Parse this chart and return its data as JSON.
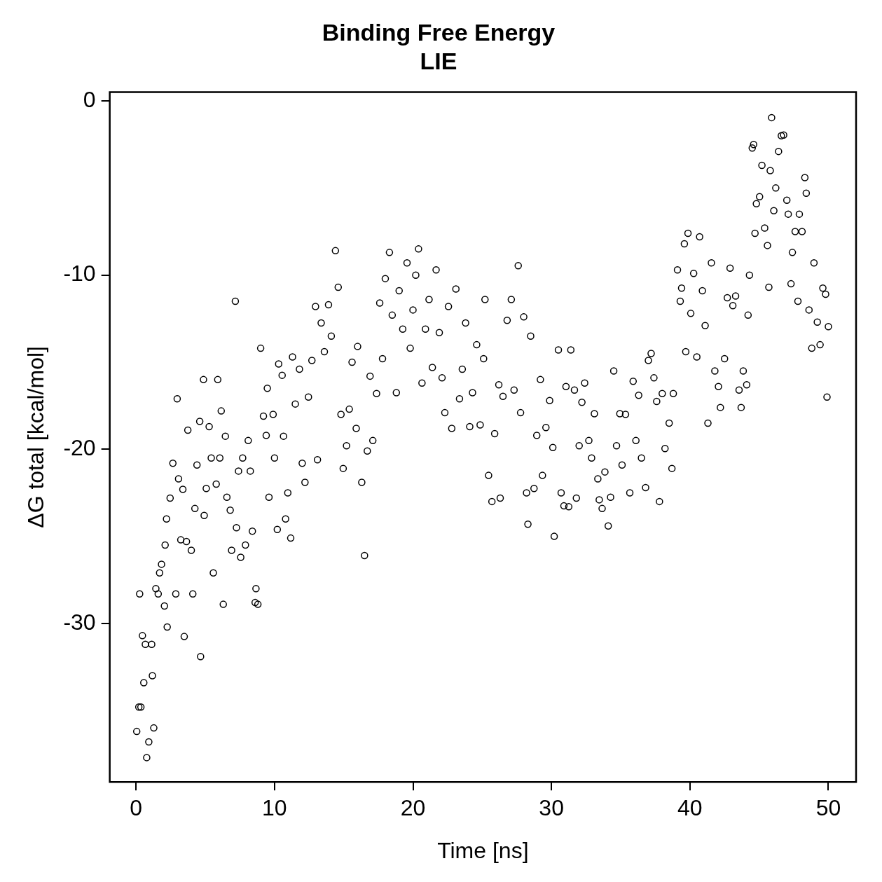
{
  "chart_data": {
    "type": "scatter",
    "title": "Binding Free Energy",
    "subtitle": "LIE",
    "xlabel": "Time [ns]",
    "ylabel": "ΔG total [kcal/mol]",
    "xlim": [
      -1.9,
      52
    ],
    "ylim": [
      -39.1,
      0.5
    ],
    "xticks": [
      0,
      10,
      20,
      30,
      40,
      50
    ],
    "yticks": [
      -30,
      -20,
      -10,
      0
    ],
    "grid": false,
    "marker": "circle",
    "series": [
      {
        "color": "#000000",
        "x": [
          0.05,
          0.2,
          0.35,
          0.26,
          0.46,
          0.56,
          0.77,
          0.92,
          0.67,
          1.13,
          1.18,
          1.28,
          1.43,
          1.6,
          1.84,
          1.7,
          2.05,
          2.1,
          2.2,
          2.25,
          2.46,
          2.66,
          2.87,
          2.97,
          3.07,
          3.23,
          3.38,
          3.48,
          3.64,
          3.74,
          3.99,
          4.1,
          4.25,
          4.4,
          4.6,
          4.66,
          4.87,
          4.92,
          5.07,
          5.28,
          5.43,
          5.58,
          5.79,
          5.9,
          6.05,
          6.15,
          6.3,
          6.45,
          6.56,
          6.8,
          6.9,
          7.17,
          7.25,
          7.4,
          7.56,
          7.7,
          7.9,
          8.1,
          8.25,
          8.4,
          8.6,
          8.66,
          8.8,
          9.0,
          9.2,
          9.4,
          9.48,
          9.6,
          9.9,
          10.0,
          10.2,
          10.3,
          10.55,
          10.65,
          10.8,
          10.96,
          11.17,
          11.3,
          11.5,
          11.8,
          12.0,
          12.2,
          12.45,
          12.7,
          12.96,
          13.1,
          13.37,
          13.6,
          13.9,
          14.1,
          14.4,
          14.6,
          14.8,
          14.96,
          15.2,
          15.4,
          15.6,
          15.9,
          16.0,
          16.3,
          16.5,
          16.7,
          16.9,
          17.1,
          17.37,
          17.6,
          17.8,
          18.0,
          18.3,
          18.5,
          18.8,
          19.0,
          19.26,
          19.57,
          19.8,
          20.0,
          20.2,
          20.4,
          20.65,
          20.9,
          21.16,
          21.4,
          21.67,
          21.9,
          22.1,
          22.3,
          22.56,
          22.8,
          23.1,
          23.36,
          23.56,
          23.8,
          24.1,
          24.3,
          24.6,
          24.85,
          25.1,
          25.2,
          25.46,
          25.7,
          25.9,
          26.2,
          26.3,
          26.5,
          26.8,
          27.1,
          27.3,
          27.6,
          27.77,
          28.0,
          28.2,
          28.3,
          28.5,
          28.74,
          28.94,
          29.2,
          29.35,
          29.6,
          29.87,
          30.1,
          30.2,
          30.5,
          30.7,
          30.9,
          31.05,
          31.25,
          31.4,
          31.66,
          31.8,
          32.0,
          32.2,
          32.4,
          32.7,
          32.9,
          33.1,
          33.35,
          33.45,
          33.66,
          33.86,
          34.1,
          34.27,
          34.5,
          34.7,
          34.94,
          35.1,
          35.35,
          35.66,
          35.9,
          36.1,
          36.3,
          36.5,
          36.8,
          37.0,
          37.2,
          37.4,
          37.6,
          37.8,
          38.0,
          38.2,
          38.5,
          38.7,
          38.8,
          39.1,
          39.3,
          39.4,
          39.6,
          39.7,
          39.86,
          40.06,
          40.27,
          40.5,
          40.7,
          40.9,
          41.1,
          41.3,
          41.55,
          41.8,
          42.06,
          42.2,
          42.5,
          42.7,
          42.9,
          43.1,
          43.3,
          43.55,
          43.7,
          43.85,
          44.1,
          44.2,
          44.3,
          44.5,
          44.6,
          44.7,
          44.8,
          45.03,
          45.2,
          45.4,
          45.6,
          45.7,
          45.8,
          45.9,
          46.06,
          46.2,
          46.4,
          46.6,
          46.77,
          47.0,
          47.1,
          47.3,
          47.4,
          47.6,
          47.8,
          47.9,
          48.1,
          48.3,
          48.4,
          48.6,
          48.8,
          48.96,
          49.2,
          49.4,
          49.6,
          49.8,
          49.9,
          50.0
        ],
        "values": [
          -36.2,
          -34.8,
          -34.8,
          -28.3,
          -30.7,
          -33.4,
          -37.7,
          -36.8,
          -31.2,
          -31.2,
          -33.0,
          -36.0,
          -28.0,
          -28.3,
          -26.6,
          -27.1,
          -29.0,
          -25.5,
          -24.0,
          -30.2,
          -22.8,
          -20.8,
          -28.3,
          -17.1,
          -21.7,
          -25.2,
          -22.3,
          -30.75,
          -25.3,
          -18.9,
          -25.8,
          -28.3,
          -23.4,
          -20.9,
          -18.4,
          -31.9,
          -16.0,
          -23.8,
          -22.25,
          -18.7,
          -20.5,
          -27.1,
          -22.0,
          -16.0,
          -20.5,
          -17.8,
          -28.9,
          -19.25,
          -22.75,
          -23.5,
          -25.8,
          -11.5,
          -24.5,
          -21.25,
          -26.2,
          -20.5,
          -25.5,
          -19.5,
          -21.25,
          -24.7,
          -28.8,
          -28.0,
          -28.9,
          -14.2,
          -18.1,
          -19.2,
          -16.5,
          -22.75,
          -18.0,
          -20.5,
          -24.6,
          -15.1,
          -15.75,
          -19.25,
          -24.0,
          -22.5,
          -25.1,
          -14.7,
          -17.4,
          -15.4,
          -20.8,
          -21.9,
          -17.0,
          -14.9,
          -11.8,
          -20.6,
          -12.75,
          -14.4,
          -11.7,
          -13.5,
          -8.6,
          -10.7,
          -18.0,
          -21.1,
          -19.8,
          -17.7,
          -15.0,
          -18.8,
          -14.1,
          -21.9,
          -26.1,
          -20.1,
          -15.8,
          -19.5,
          -16.8,
          -11.6,
          -14.8,
          -10.2,
          -8.7,
          -12.3,
          -16.75,
          -10.9,
          -13.1,
          -9.3,
          -14.2,
          -12.0,
          -10.0,
          -8.5,
          -16.2,
          -13.1,
          -11.4,
          -15.3,
          -9.7,
          -13.3,
          -15.9,
          -17.9,
          -11.8,
          -18.8,
          -10.8,
          -17.1,
          -15.4,
          -12.75,
          -18.7,
          -16.75,
          -14.0,
          -18.6,
          -14.8,
          -11.4,
          -21.5,
          -23.0,
          -19.1,
          -16.3,
          -22.8,
          -16.96,
          -12.6,
          -11.4,
          -16.6,
          -9.46,
          -17.9,
          -12.4,
          -22.5,
          -24.3,
          -13.5,
          -22.25,
          -19.2,
          -16.0,
          -21.5,
          -18.75,
          -17.2,
          -19.9,
          -25.0,
          -14.3,
          -22.5,
          -23.25,
          -16.4,
          -23.3,
          -14.3,
          -16.6,
          -22.8,
          -19.8,
          -17.3,
          -16.2,
          -19.5,
          -20.5,
          -17.96,
          -21.7,
          -22.9,
          -23.4,
          -21.3,
          -24.4,
          -22.75,
          -15.5,
          -19.8,
          -17.96,
          -20.9,
          -18.0,
          -22.5,
          -16.1,
          -19.5,
          -16.9,
          -20.5,
          -22.2,
          -14.9,
          -14.5,
          -15.9,
          -17.25,
          -23.0,
          -16.8,
          -19.96,
          -18.5,
          -21.1,
          -16.8,
          -9.7,
          -11.5,
          -10.75,
          -8.2,
          -14.4,
          -7.6,
          -12.2,
          -9.9,
          -14.7,
          -7.8,
          -10.9,
          -12.9,
          -18.5,
          -9.3,
          -15.5,
          -16.4,
          -17.6,
          -14.8,
          -11.3,
          -9.6,
          -11.75,
          -11.2,
          -16.6,
          -17.6,
          -15.5,
          -16.3,
          -12.3,
          -10.0,
          -2.7,
          -2.5,
          -7.6,
          -5.9,
          -5.5,
          -3.7,
          -7.3,
          -8.3,
          -10.7,
          -4.0,
          -0.96,
          -6.3,
          -5.0,
          -2.9,
          -2.0,
          -1.96,
          -5.7,
          -6.5,
          -10.5,
          -8.7,
          -7.5,
          -11.5,
          -6.5,
          -7.5,
          -4.4,
          -5.3,
          -12.0,
          -14.2,
          -9.3,
          -12.7,
          -14.0,
          -10.75,
          -11.1,
          -17.0,
          -12.96
        ]
      }
    ]
  }
}
